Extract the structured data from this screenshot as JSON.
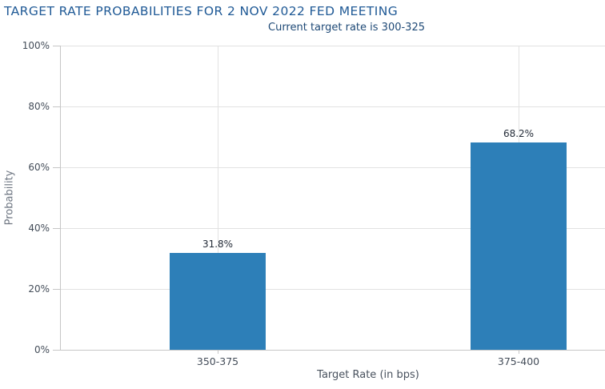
{
  "title": "TARGET RATE PROBABILITIES FOR 2 NOV 2022 FED MEETING",
  "subtitle": "Current target rate is 300-325",
  "chart_data": {
    "type": "bar",
    "title": "TARGET RATE PROBABILITIES FOR 2 NOV 2022 FED MEETING",
    "subtitle": "Current target rate is 300-325",
    "categories": [
      "350-375",
      "375-400"
    ],
    "values": [
      31.8,
      68.2
    ],
    "value_labels": [
      "31.8%",
      "68.2%"
    ],
    "xlabel": "Target Rate (in bps)",
    "ylabel": "Probability",
    "ylim": [
      0,
      100
    ],
    "ytick_values": [
      0,
      20,
      40,
      60,
      80,
      100
    ],
    "ytick_labels": [
      "0%",
      "20%",
      "40%",
      "60%",
      "80%",
      "100%"
    ],
    "grid": true,
    "legend": "none",
    "colors": {
      "bar": "#2d7fb8",
      "title": "#205a96",
      "subtitle": "#1e4976",
      "grid": "#e2e2e2",
      "axis": "#c6c6c6",
      "tick_label": "#444d59",
      "value_label": "#242c38",
      "x_axis_title": "#49525e",
      "y_axis_title": "#6e7682",
      "background": "#ffffff"
    }
  }
}
